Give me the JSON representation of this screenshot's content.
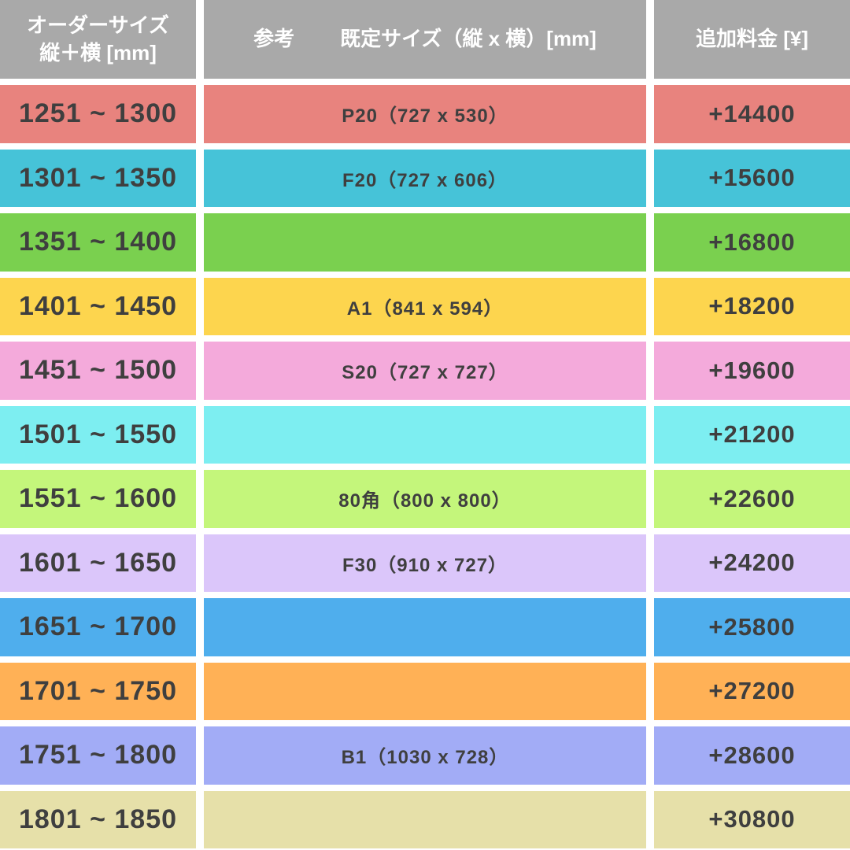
{
  "table": {
    "header": {
      "order_size_line1": "オーダーサイズ",
      "order_size_line2": "縦＋横 [mm]",
      "reference_label": "参考",
      "reference_title": "既定サイズ（縦 x 横）[mm]",
      "fee_label": "追加料金 [¥]",
      "header_bg": "#a9a9a9"
    },
    "rows": [
      {
        "range": "1251 ~ 1300",
        "size": "P20（727 x 530）",
        "fee": "+14400",
        "color": "#e8837e"
      },
      {
        "range": "1301 ~ 1350",
        "size": "F20（727 x 606）",
        "fee": "+15600",
        "color": "#46c3d8"
      },
      {
        "range": "1351 ~ 1400",
        "size": "",
        "fee": "+16800",
        "color": "#7ad04f"
      },
      {
        "range": "1401 ~ 1450",
        "size": "A1（841 x 594）",
        "fee": "+18200",
        "color": "#fdd54e"
      },
      {
        "range": "1451 ~ 1500",
        "size": "S20（727 x 727）",
        "fee": "+19600",
        "color": "#f4aadb"
      },
      {
        "range": "1501 ~ 1550",
        "size": "",
        "fee": "+21200",
        "color": "#7deef1"
      },
      {
        "range": "1551 ~ 1600",
        "size": "80角（800 x 800）",
        "fee": "+22600",
        "color": "#c4f67b"
      },
      {
        "range": "1601 ~ 1650",
        "size": "F30（910 x 727）",
        "fee": "+24200",
        "color": "#dbc6fa"
      },
      {
        "range": "1651 ~ 1700",
        "size": "",
        "fee": "+25800",
        "color": "#4faeed"
      },
      {
        "range": "1701 ~ 1750",
        "size": "",
        "fee": "+27200",
        "color": "#ffb156"
      },
      {
        "range": "1751 ~ 1800",
        "size": "B1（1030 x 728）",
        "fee": "+28600",
        "color": "#a2acf6"
      },
      {
        "range": "1801 ~ 1850",
        "size": "",
        "fee": "+30800",
        "color": "#e6e0a9"
      }
    ]
  },
  "chart_data": {
    "type": "table",
    "title": "オーダーサイズ追加料金表",
    "columns": [
      "オーダーサイズ 縦＋横 [mm]",
      "参考 既定サイズ（縦 x 横）[mm]",
      "追加料金 [¥]"
    ],
    "rows": [
      [
        "1251 ~ 1300",
        "P20（727 x 530）",
        "+14400"
      ],
      [
        "1301 ~ 1350",
        "F20（727 x 606）",
        "+15600"
      ],
      [
        "1351 ~ 1400",
        "",
        "+16800"
      ],
      [
        "1401 ~ 1450",
        "A1（841 x 594）",
        "+18200"
      ],
      [
        "1451 ~ 1500",
        "S20（727 x 727）",
        "+19600"
      ],
      [
        "1501 ~ 1550",
        "",
        "+21200"
      ],
      [
        "1551 ~ 1600",
        "80角（800 x 800）",
        "+22600"
      ],
      [
        "1601 ~ 1650",
        "F30（910 x 727）",
        "+24200"
      ],
      [
        "1651 ~ 1700",
        "",
        "+25800"
      ],
      [
        "1701 ~ 1750",
        "",
        "+27200"
      ],
      [
        "1751 ~ 1800",
        "B1（1030 x 728）",
        "+28600"
      ],
      [
        "1801 ~ 1850",
        "",
        "+30800"
      ]
    ]
  }
}
